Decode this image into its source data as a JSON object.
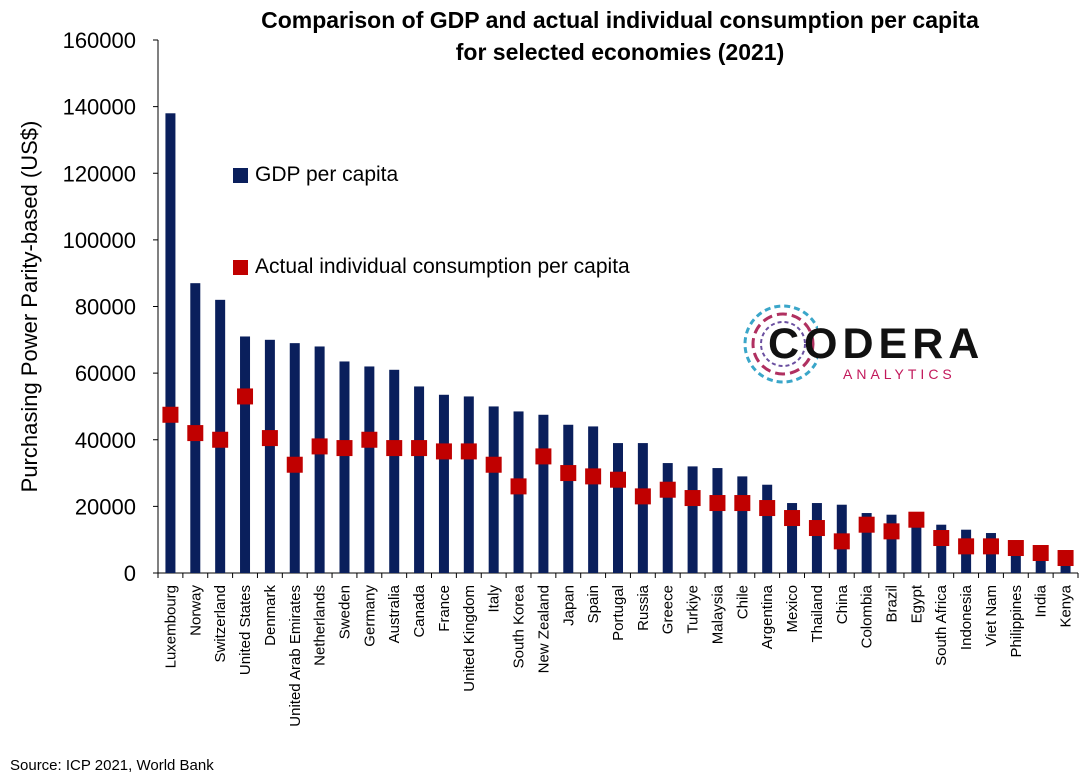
{
  "header": {
    "title_line1": "Comparison of GDP and actual individual consumption per capita",
    "title_line2": "for selected economies (2021)"
  },
  "footer": {
    "source": "Source: ICP 2021, World Bank"
  },
  "logo": {
    "word": "CODERA",
    "sub": "ANALYTICS"
  },
  "colors": {
    "gdp_bar": "#0a1f5c",
    "consumption_marker": "#c00000"
  },
  "chart_data": {
    "type": "bar",
    "title": "Comparison of GDP and actual individual consumption per capita for selected economies (2021)",
    "xlabel": "",
    "ylabel": "Purchasing Power Parity-based (US$)",
    "ylim": [
      0,
      160000
    ],
    "yticks": [
      0,
      20000,
      40000,
      60000,
      80000,
      100000,
      120000,
      140000,
      160000
    ],
    "legend_position": "upper-left",
    "categories": [
      "Luxembourg",
      "Norway",
      "Switzerland",
      "United States",
      "Denmark",
      "United Arab Emirates",
      "Netherlands",
      "Sweden",
      "Germany",
      "Australia",
      "Canada",
      "France",
      "United Kingdom",
      "Italy",
      "South Korea",
      "New Zealand",
      "Japan",
      "Spain",
      "Portugal",
      "Russia",
      "Greece",
      "Turkiye",
      "Malaysia",
      "Chile",
      "Argentina",
      "Mexico",
      "Thailand",
      "China",
      "Colombia",
      "Brazil",
      "Egypt",
      "South Africa",
      "Indonesia",
      "Viet Nam",
      "Philippines",
      "India",
      "Kenya"
    ],
    "series": [
      {
        "name": "GDP per capita",
        "type": "bar",
        "values": [
          138000,
          87000,
          82000,
          71000,
          70000,
          69000,
          68000,
          63500,
          62000,
          61000,
          56000,
          53500,
          53000,
          50000,
          48500,
          47500,
          44500,
          44000,
          39000,
          39000,
          33000,
          32000,
          31500,
          29000,
          26500,
          21000,
          21000,
          20500,
          18000,
          17500,
          16000,
          14500,
          13000,
          12000,
          9000,
          7000,
          5000
        ]
      },
      {
        "name": "Actual individual consumption per capita",
        "type": "marker",
        "values": [
          47500,
          42000,
          40000,
          53000,
          40500,
          32500,
          38000,
          37500,
          40000,
          37500,
          37500,
          36500,
          36500,
          32500,
          26000,
          35000,
          30000,
          29000,
          28000,
          23000,
          25000,
          22500,
          21000,
          21000,
          19500,
          16500,
          13500,
          9500,
          14500,
          12500,
          16000,
          10500,
          8000,
          8000,
          7500,
          6000,
          4500
        ]
      }
    ]
  }
}
